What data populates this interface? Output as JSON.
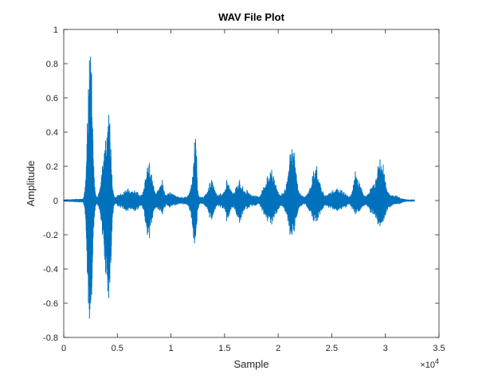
{
  "chart_data": {
    "type": "line",
    "title": "WAV File Plot",
    "xlabel": "Sample",
    "ylabel": "Amplitude",
    "xlim": [
      0,
      35000
    ],
    "ylim": [
      -0.8,
      1
    ],
    "x_exponent_label": "×10",
    "x_exponent_power": "4",
    "x_ticks": [
      0,
      5000,
      10000,
      15000,
      20000,
      25000,
      30000,
      35000
    ],
    "x_tick_labels": [
      "0",
      "0.5",
      "1",
      "1.5",
      "2",
      "2.5",
      "3",
      "3.5"
    ],
    "y_ticks": [
      -0.8,
      -0.6,
      -0.4,
      -0.2,
      0,
      0.2,
      0.4,
      0.6,
      0.8,
      1
    ],
    "y_tick_labels": [
      "-0.8",
      "-0.6",
      "-0.4",
      "-0.2",
      "0",
      "0.2",
      "0.4",
      "0.6",
      "0.8",
      "1"
    ],
    "grid": false,
    "line_color": "#0072BD",
    "series": [
      {
        "x": [
          0,
          1800,
          2000,
          2200,
          2300,
          2400,
          2500,
          2600,
          2700,
          2800,
          2900,
          3000,
          3100,
          3300,
          3600,
          3900,
          4100,
          4200,
          4300,
          4400,
          4500,
          4600,
          4700,
          4800,
          5000,
          5300,
          5600,
          5800,
          6000,
          6300,
          6600,
          6900,
          7200,
          7400,
          7600,
          7800,
          8000,
          8200,
          8400,
          8600,
          8800,
          9200,
          9500,
          9700,
          9900,
          10100,
          10400,
          10700,
          11000,
          11300,
          11600,
          11900,
          12100,
          12200,
          12300,
          12400,
          12500,
          12700,
          13000,
          13400,
          13600,
          13800,
          14000,
          14300,
          14600,
          15000,
          15200,
          15400,
          15600,
          15800,
          16100,
          16400,
          16700,
          16900,
          17100,
          17300,
          17600,
          17900,
          18200,
          18500,
          19000,
          19400,
          19800,
          20200,
          20600,
          20900,
          21100,
          21300,
          21500,
          21700,
          21900,
          22200,
          22500,
          22900,
          23300,
          23600,
          23900,
          24300,
          24700,
          25100,
          25500,
          25900,
          26300,
          26600,
          26900,
          27200,
          27600,
          28000,
          28300,
          28600,
          28900,
          29100,
          29300,
          29500,
          29800,
          30200,
          30600,
          31000,
          31300,
          31600,
          32000,
          32700
        ],
        "upper": [
          0.005,
          0.01,
          0.08,
          0.45,
          0.65,
          0.82,
          0.84,
          0.74,
          0.42,
          0.2,
          0.08,
          0.03,
          0.02,
          0.05,
          0.2,
          0.35,
          0.4,
          0.5,
          0.45,
          0.3,
          0.15,
          0.06,
          0.03,
          0.02,
          0.03,
          0.04,
          0.05,
          0.06,
          0.07,
          0.05,
          0.06,
          0.05,
          0.03,
          0.05,
          0.12,
          0.19,
          0.22,
          0.15,
          0.08,
          0.04,
          0.06,
          0.12,
          0.03,
          0.04,
          0.05,
          0.04,
          0.03,
          0.02,
          0.02,
          0.02,
          0.03,
          0.09,
          0.2,
          0.34,
          0.36,
          0.25,
          0.06,
          0.02,
          0.02,
          0.05,
          0.1,
          0.12,
          0.08,
          0.03,
          0.04,
          0.05,
          0.12,
          0.09,
          0.06,
          0.04,
          0.08,
          0.12,
          0.08,
          0.05,
          0.06,
          0.04,
          0.03,
          0.03,
          0.02,
          0.06,
          0.14,
          0.18,
          0.09,
          0.03,
          0.06,
          0.13,
          0.27,
          0.3,
          0.28,
          0.15,
          0.06,
          0.03,
          0.02,
          0.06,
          0.17,
          0.2,
          0.1,
          0.03,
          0.04,
          0.06,
          0.07,
          0.06,
          0.04,
          0.02,
          0.05,
          0.17,
          0.1,
          0.03,
          0.03,
          0.07,
          0.09,
          0.12,
          0.2,
          0.24,
          0.21,
          0.05,
          0.03,
          0.03,
          0.02,
          0.01,
          0.005,
          0.005
        ],
        "lower": [
          -0.005,
          -0.01,
          -0.08,
          -0.42,
          -0.6,
          -0.69,
          -0.6,
          -0.55,
          -0.32,
          -0.15,
          -0.06,
          -0.03,
          -0.02,
          -0.05,
          -0.2,
          -0.42,
          -0.53,
          -0.57,
          -0.48,
          -0.35,
          -0.18,
          -0.06,
          -0.03,
          -0.02,
          -0.03,
          -0.04,
          -0.05,
          -0.06,
          -0.06,
          -0.05,
          -0.06,
          -0.05,
          -0.03,
          -0.05,
          -0.12,
          -0.2,
          -0.22,
          -0.13,
          -0.06,
          -0.04,
          -0.05,
          -0.08,
          -0.03,
          -0.03,
          -0.04,
          -0.03,
          -0.03,
          -0.02,
          -0.02,
          -0.02,
          -0.03,
          -0.1,
          -0.22,
          -0.25,
          -0.2,
          -0.14,
          -0.05,
          -0.02,
          -0.02,
          -0.05,
          -0.1,
          -0.11,
          -0.07,
          -0.03,
          -0.04,
          -0.05,
          -0.12,
          -0.09,
          -0.05,
          -0.04,
          -0.08,
          -0.13,
          -0.08,
          -0.05,
          -0.05,
          -0.04,
          -0.03,
          -0.03,
          -0.02,
          -0.06,
          -0.12,
          -0.14,
          -0.08,
          -0.03,
          -0.06,
          -0.12,
          -0.2,
          -0.2,
          -0.18,
          -0.1,
          -0.05,
          -0.03,
          -0.02,
          -0.06,
          -0.12,
          -0.12,
          -0.08,
          -0.03,
          -0.04,
          -0.05,
          -0.06,
          -0.05,
          -0.04,
          -0.02,
          -0.05,
          -0.08,
          -0.06,
          -0.03,
          -0.03,
          -0.07,
          -0.08,
          -0.1,
          -0.14,
          -0.15,
          -0.12,
          -0.05,
          -0.03,
          -0.02,
          -0.02,
          -0.01,
          -0.005,
          -0.005
        ]
      }
    ]
  }
}
